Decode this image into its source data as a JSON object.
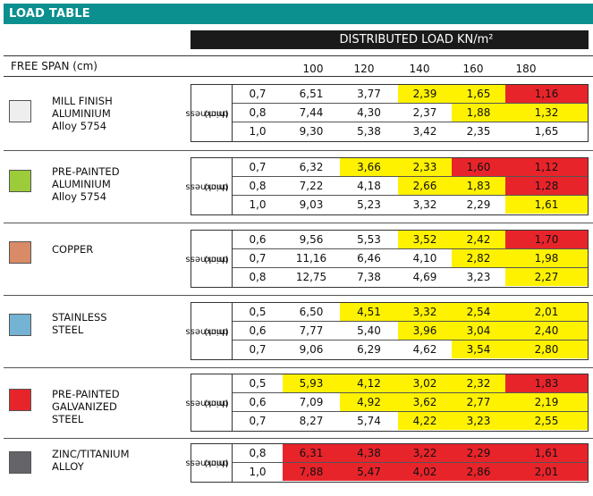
{
  "title": "LOAD TABLE",
  "distributed_load_header": "DISTRIBUTED LOAD KN/m²",
  "free_span_label": "FREE SPAN (cm)",
  "spans": [
    "100",
    "120",
    "140",
    "160",
    "180"
  ],
  "thickness_label_line1": "thickness",
  "thickness_label_line2": "(mm)",
  "colors": {
    "banner": "#0c8f8f",
    "yellow": "#fff200",
    "red": "#e8242b"
  },
  "materials": [
    {
      "name": "MILL FINISH\nALUMINIUM\nAlloy 5754",
      "swatch_color": "#eeeeee",
      "rows": [
        {
          "thickness": "0,7",
          "values": [
            "6,51",
            "3,77",
            "2,39",
            "1,65",
            "1,16"
          ],
          "colors": [
            "",
            "",
            "y",
            "y",
            "r"
          ]
        },
        {
          "thickness": "0,8",
          "values": [
            "7,44",
            "4,30",
            "2,37",
            "1,88",
            "1,32"
          ],
          "colors": [
            "",
            "",
            "",
            "y",
            "y"
          ]
        },
        {
          "thickness": "1,0",
          "values": [
            "9,30",
            "5,38",
            "3,42",
            "2,35",
            "1,65"
          ],
          "colors": [
            "",
            "",
            "",
            "",
            ""
          ]
        }
      ]
    },
    {
      "name": "PRE-PAINTED\nALUMINIUM\nAlloy 5754",
      "swatch_color": "#9ccc3a",
      "rows": [
        {
          "thickness": "0,7",
          "values": [
            "6,32",
            "3,66",
            "2,33",
            "1,60",
            "1,12"
          ],
          "colors": [
            "",
            "y",
            "y",
            "r",
            "r"
          ]
        },
        {
          "thickness": "0,8",
          "values": [
            "7,22",
            "4,18",
            "2,66",
            "1,83",
            "1,28"
          ],
          "colors": [
            "",
            "",
            "y",
            "y",
            "r"
          ]
        },
        {
          "thickness": "1,0",
          "values": [
            "9,03",
            "5,23",
            "3,32",
            "2,29",
            "1,61"
          ],
          "colors": [
            "",
            "",
            "",
            "",
            "y"
          ]
        }
      ]
    },
    {
      "name": "COPPER",
      "swatch_color": "#d98a66",
      "rows": [
        {
          "thickness": "0,6",
          "values": [
            "9,56",
            "5,53",
            "3,52",
            "2,42",
            "1,70"
          ],
          "colors": [
            "",
            "",
            "y",
            "y",
            "r"
          ]
        },
        {
          "thickness": "0,7",
          "values": [
            "11,16",
            "6,46",
            "4,10",
            "2,82",
            "1,98"
          ],
          "colors": [
            "",
            "",
            "",
            "y",
            "y"
          ]
        },
        {
          "thickness": "0,8",
          "values": [
            "12,75",
            "7,38",
            "4,69",
            "3,23",
            "2,27"
          ],
          "colors": [
            "",
            "",
            "",
            "",
            "y"
          ]
        }
      ]
    },
    {
      "name": "STAINLESS\nSTEEL",
      "swatch_color": "#74b3d4",
      "rows": [
        {
          "thickness": "0,5",
          "values": [
            "6,50",
            "4,51",
            "3,32",
            "2,54",
            "2,01"
          ],
          "colors": [
            "",
            "y",
            "y",
            "y",
            "y"
          ]
        },
        {
          "thickness": "0,6",
          "values": [
            "7,77",
            "5,40",
            "3,96",
            "3,04",
            "2,40"
          ],
          "colors": [
            "",
            "",
            "y",
            "y",
            "y"
          ]
        },
        {
          "thickness": "0,7",
          "values": [
            "9,06",
            "6,29",
            "4,62",
            "3,54",
            "2,80"
          ],
          "colors": [
            "",
            "",
            "",
            "y",
            "y"
          ]
        }
      ]
    },
    {
      "name": "PRE-PAINTED\nGALVANIZED\nSTEEL",
      "swatch_color": "#e8242b",
      "rows": [
        {
          "thickness": "0,5",
          "values": [
            "5,93",
            "4,12",
            "3,02",
            "2,32",
            "1,83"
          ],
          "colors": [
            "y",
            "y",
            "y",
            "y",
            "r"
          ]
        },
        {
          "thickness": "0,6",
          "values": [
            "7,09",
            "4,92",
            "3,62",
            "2,77",
            "2,19"
          ],
          "colors": [
            "",
            "y",
            "y",
            "y",
            "y"
          ]
        },
        {
          "thickness": "0,7",
          "values": [
            "8,27",
            "5,74",
            "4,22",
            "3,23",
            "2,55"
          ],
          "colors": [
            "",
            "",
            "y",
            "y",
            "y"
          ]
        }
      ]
    },
    {
      "name": "ZINC/TITANIUM\nALLOY",
      "swatch_color": "#646469",
      "rows": [
        {
          "thickness": "0,8",
          "values": [
            "6,31",
            "4,38",
            "3,22",
            "2,29",
            "1,61"
          ],
          "colors": [
            "r",
            "r",
            "r",
            "r",
            "r"
          ]
        },
        {
          "thickness": "1,0",
          "values": [
            "7,88",
            "5,47",
            "4,02",
            "2,86",
            "2,01"
          ],
          "colors": [
            "r",
            "r",
            "r",
            "r",
            "r"
          ]
        }
      ]
    }
  ]
}
